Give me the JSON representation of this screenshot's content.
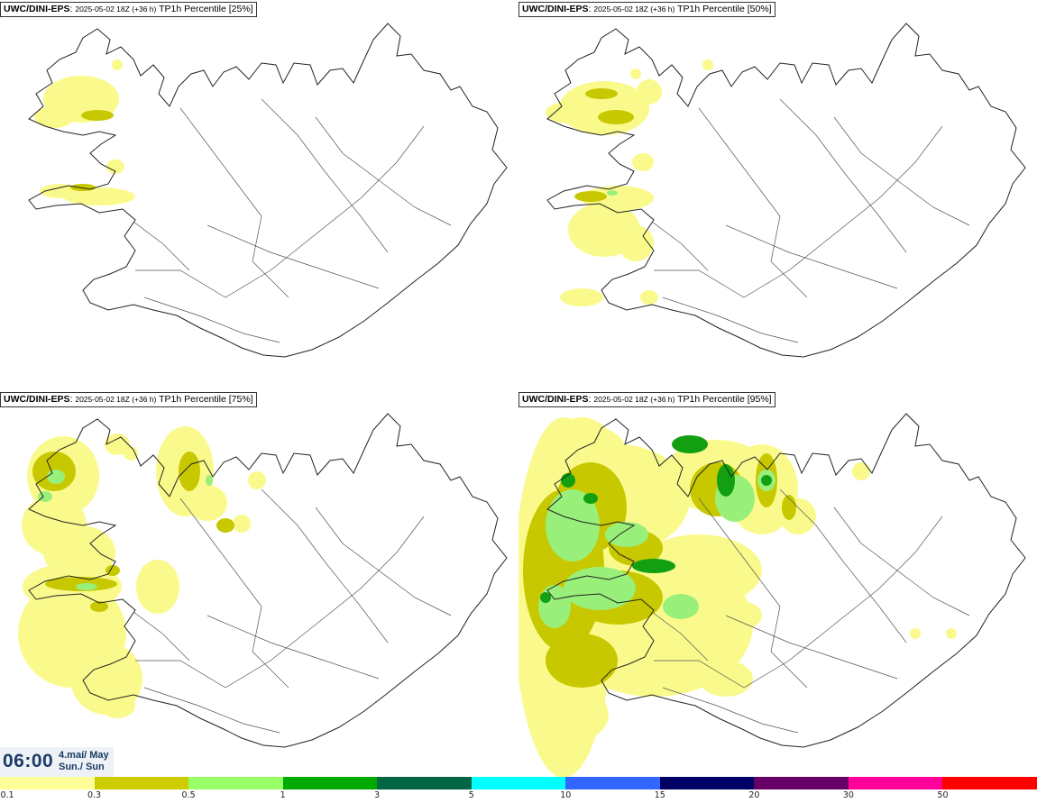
{
  "panels": [
    {
      "model": "UWC/DINI-EPS",
      "run": "2025-05-02 18Z (+36 h)",
      "product": "TP1h Percentile",
      "percentile": "[25%]"
    },
    {
      "model": "UWC/DINI-EPS",
      "run": "2025-05-02 18Z (+36 h)",
      "product": "TP1h Percentile",
      "percentile": "[50%]"
    },
    {
      "model": "UWC/DINI-EPS",
      "run": "2025-05-02 18Z (+36 h)",
      "product": "TP1h Percentile",
      "percentile": "[75%]"
    },
    {
      "model": "UWC/DINI-EPS",
      "run": "2025-05-02 18Z (+36 h)",
      "product": "TP1h Percentile",
      "percentile": "[95%]"
    }
  ],
  "time": {
    "clock": "06:00",
    "date_line": "4.maí/ May",
    "day_line": "Sun./ Sun"
  },
  "legend": {
    "colors": [
      "#ffff99",
      "#cccc00",
      "#99ff66",
      "#00aa00",
      "#006644",
      "#00ffff",
      "#3366ff",
      "#000066",
      "#660066",
      "#ff0099",
      "#ff0000"
    ],
    "labels": [
      "0.1",
      "0.3",
      "0.5",
      "1",
      "3",
      "5",
      "10",
      "15",
      "20",
      "30",
      "50"
    ]
  },
  "precip_colors": {
    "light": "#fafa8c",
    "medium": "#c8c800",
    "heavy": "#98f07a",
    "very_heavy": "#12a012"
  }
}
